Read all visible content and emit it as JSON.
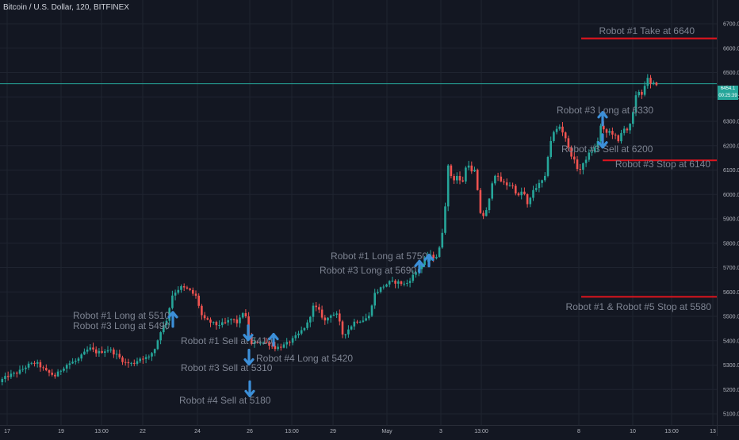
{
  "header": {
    "title": "Bitcoin / U.S. Dollar, 120, BITFINEX"
  },
  "price_tag": {
    "price": "6454.1",
    "countdown": "00:25:39"
  },
  "colors": {
    "background": "#131722",
    "grid": "#1f2430",
    "up": "#26a69a",
    "down": "#ef5350",
    "red_line": "#e0141e",
    "arrow": "#3c8fd8",
    "annotation_text": "#7e8492",
    "axis_text": "#b2b5be"
  },
  "chart_data": {
    "type": "candlestick",
    "title": "Bitcoin / U.S. Dollar, 120, BITFINEX",
    "ylim": [
      5080,
      6880
    ],
    "y_ticks": [
      5100.0,
      5200.0,
      5300.0,
      5400.0,
      5500.0,
      5600.0,
      5700.0,
      5800.0,
      5900.0,
      6000.0,
      6100.0,
      6200.0,
      6300.0,
      6400.0,
      6500.0,
      6600.0,
      6700.0
    ],
    "x_ticks": [
      "17",
      "19",
      "13:00",
      "22",
      "24",
      "26",
      "13:00",
      "29",
      "May",
      "3",
      "13:00",
      "8",
      "10",
      "13:00",
      "13"
    ],
    "current_price": 6454.1,
    "price_path": [
      [
        0,
        5230
      ],
      [
        12,
        5255
      ],
      [
        25,
        5270
      ],
      [
        38,
        5300
      ],
      [
        48,
        5310
      ],
      [
        60,
        5275
      ],
      [
        72,
        5255
      ],
      [
        85,
        5300
      ],
      [
        100,
        5320
      ],
      [
        115,
        5370
      ],
      [
        125,
        5350
      ],
      [
        140,
        5365
      ],
      [
        150,
        5340
      ],
      [
        160,
        5310
      ],
      [
        170,
        5305
      ],
      [
        180,
        5330
      ],
      [
        190,
        5330
      ],
      [
        198,
        5370
      ],
      [
        205,
        5440
      ],
      [
        212,
        5480
      ],
      [
        220,
        5590
      ],
      [
        230,
        5620
      ],
      [
        240,
        5610
      ],
      [
        250,
        5580
      ],
      [
        258,
        5490
      ],
      [
        265,
        5480
      ],
      [
        275,
        5465
      ],
      [
        285,
        5470
      ],
      [
        295,
        5490
      ],
      [
        303,
        5470
      ],
      [
        308,
        5520
      ],
      [
        312,
        5500
      ],
      [
        318,
        5380
      ],
      [
        325,
        5395
      ],
      [
        333,
        5395
      ],
      [
        340,
        5390
      ],
      [
        350,
        5370
      ],
      [
        360,
        5380
      ],
      [
        370,
        5400
      ],
      [
        380,
        5430
      ],
      [
        390,
        5470
      ],
      [
        398,
        5545
      ],
      [
        405,
        5520
      ],
      [
        412,
        5480
      ],
      [
        420,
        5510
      ],
      [
        428,
        5505
      ],
      [
        435,
        5420
      ],
      [
        440,
        5440
      ],
      [
        450,
        5480
      ],
      [
        460,
        5485
      ],
      [
        468,
        5500
      ],
      [
        474,
        5590
      ],
      [
        484,
        5620
      ],
      [
        494,
        5640
      ],
      [
        504,
        5640
      ],
      [
        514,
        5630
      ],
      [
        524,
        5670
      ],
      [
        534,
        5710
      ],
      [
        542,
        5750
      ],
      [
        552,
        5740
      ],
      [
        558,
        5790
      ],
      [
        563,
        5920
      ],
      [
        568,
        6130
      ],
      [
        573,
        6050
      ],
      [
        578,
        6080
      ],
      [
        585,
        6040
      ],
      [
        592,
        6140
      ],
      [
        597,
        6090
      ],
      [
        602,
        6100
      ],
      [
        607,
        5930
      ],
      [
        613,
        5910
      ],
      [
        618,
        5950
      ],
      [
        625,
        6090
      ],
      [
        632,
        6060
      ],
      [
        640,
        6040
      ],
      [
        648,
        6040
      ],
      [
        656,
        5990
      ],
      [
        662,
        6020
      ],
      [
        668,
        5950
      ],
      [
        675,
        6020
      ],
      [
        682,
        6040
      ],
      [
        690,
        6070
      ],
      [
        695,
        6200
      ],
      [
        700,
        6250
      ],
      [
        708,
        6280
      ],
      [
        715,
        6240
      ],
      [
        720,
        6180
      ],
      [
        725,
        6150
      ],
      [
        730,
        6110
      ],
      [
        735,
        6100
      ],
      [
        740,
        6140
      ],
      [
        746,
        6170
      ],
      [
        750,
        6180
      ],
      [
        755,
        6200
      ],
      [
        760,
        6280
      ],
      [
        766,
        6250
      ],
      [
        772,
        6260
      ],
      [
        778,
        6240
      ],
      [
        783,
        6210
      ],
      [
        788,
        6280
      ],
      [
        795,
        6260
      ],
      [
        800,
        6320
      ],
      [
        806,
        6430
      ],
      [
        812,
        6410
      ],
      [
        818,
        6480
      ],
      [
        823,
        6450
      ],
      [
        827,
        6454.1
      ]
    ],
    "horizontal_lines": [
      {
        "label": "Robot #1 Take at 6640",
        "price": 6640
      },
      {
        "label": "Robot #3 Stop at 6140",
        "price": 6140
      },
      {
        "label": "Robot #1 & Robot #5 Stop at 5580",
        "price": 5580
      }
    ],
    "annotations": [
      {
        "text": "Robot #1 Long at 5510"
      },
      {
        "text": "Robot #3 Long at 5490"
      },
      {
        "text": "Robot #1 Sell at 5410"
      },
      {
        "text": "Robot #3 Sell at 5310"
      },
      {
        "text": "Robot #4 Sell at 5180"
      },
      {
        "text": "Robot #4 Long at 5420"
      },
      {
        "text": "Robot #1 Long at 5750"
      },
      {
        "text": "Robot #3 Long at 5690"
      },
      {
        "text": "Robot #3 Long at 6330"
      },
      {
        "text": "Robot #3 Sell at 6200"
      }
    ],
    "arrows": [
      {
        "direction": "up",
        "price": 5510
      },
      {
        "direction": "down",
        "price": 5410
      },
      {
        "direction": "down",
        "price": 5310
      },
      {
        "direction": "down",
        "price": 5180
      },
      {
        "direction": "up",
        "price": 5420
      },
      {
        "direction": "up",
        "price": 5720
      },
      {
        "direction": "up",
        "price": 5745
      },
      {
        "direction": "up",
        "price": 6330
      },
      {
        "direction": "down",
        "price": 6200
      }
    ]
  }
}
